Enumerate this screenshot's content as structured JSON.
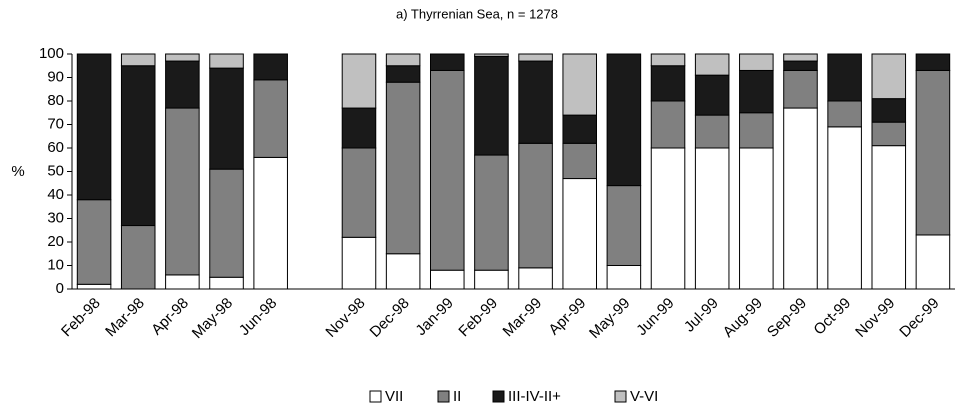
{
  "chart_data": {
    "type": "stacked_bar",
    "title": "a) Thyrrenian Sea, n = 1278",
    "y_label": "%",
    "categories": [
      "Feb-98",
      "Mar-98",
      "Apr-98",
      "May-98",
      "Jun-98",
      null,
      "Nov-98",
      "Dec-98",
      "Jan-99",
      "Feb-99",
      "Mar-99",
      "Apr-99",
      "May-99",
      "Jun-99",
      "Jul-99",
      "Aug-99",
      "Sep-99",
      "Oct-99",
      "Nov-99",
      "Dec-99"
    ],
    "series": [
      {
        "name": "VII",
        "color": "#ffffff",
        "values": [
          2,
          0,
          6,
          5,
          56,
          null,
          22,
          15,
          8,
          8,
          9,
          47,
          10,
          60,
          60,
          60,
          77,
          69,
          61,
          23
        ]
      },
      {
        "name": "II",
        "color": "#808080",
        "values": [
          36,
          27,
          71,
          46,
          33,
          null,
          38,
          73,
          85,
          49,
          53,
          15,
          34,
          20,
          14,
          15,
          16,
          11,
          10,
          70
        ]
      },
      {
        "name": "III-IV-II+",
        "color": "#1a1a1a",
        "values": [
          62,
          68,
          20,
          43,
          11,
          null,
          17,
          7,
          7,
          42,
          35,
          12,
          56,
          15,
          17,
          18,
          4,
          20,
          10,
          7
        ]
      },
      {
        "name": "V-VI",
        "color": "#c0c0c0",
        "values": [
          0,
          5,
          3,
          6,
          0,
          null,
          23,
          5,
          0,
          1,
          3,
          26,
          0,
          5,
          9,
          7,
          3,
          0,
          19,
          0
        ]
      }
    ],
    "ylim": [
      0,
      100
    ],
    "yticks": [
      0,
      10,
      20,
      30,
      40,
      50,
      60,
      70,
      80,
      90,
      100
    ],
    "legend": "bottom"
  }
}
